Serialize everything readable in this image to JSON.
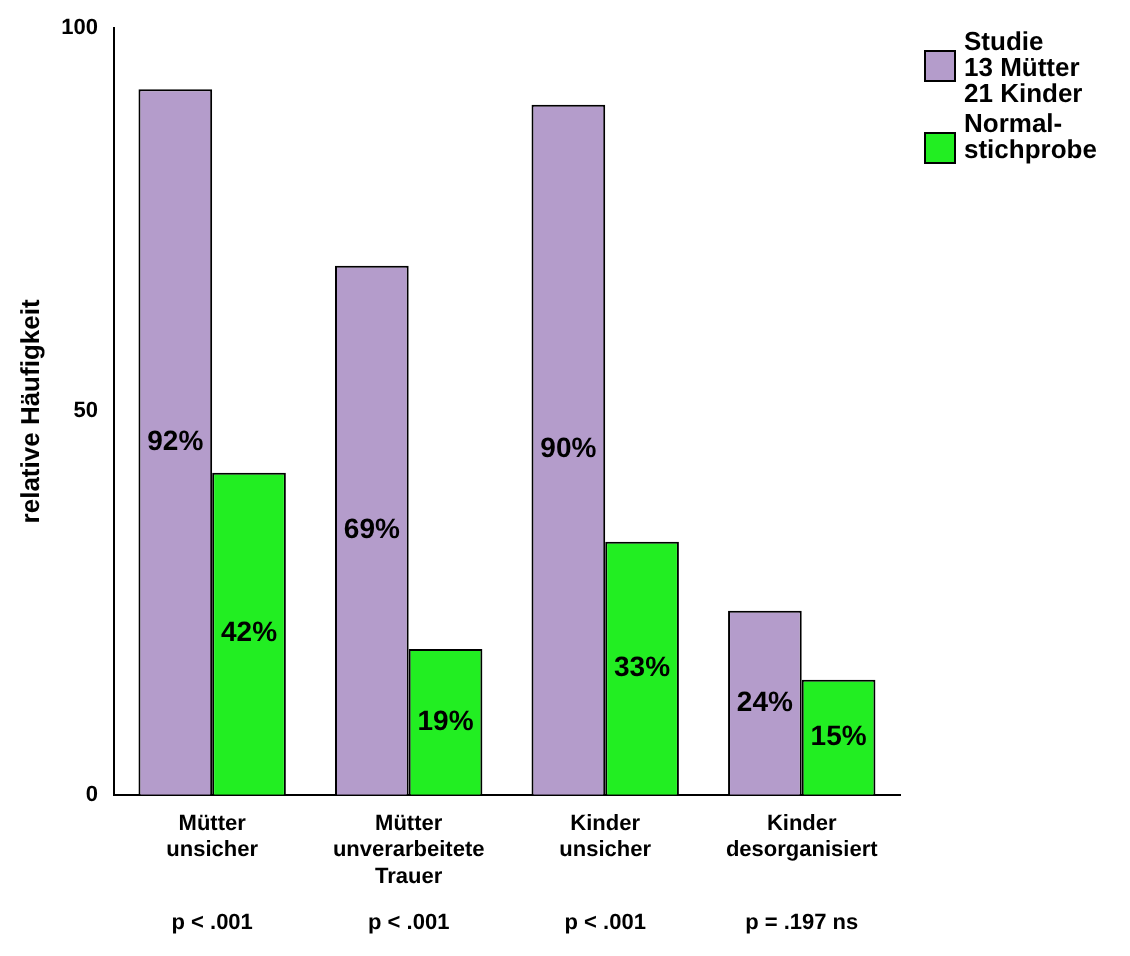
{
  "chart_data": {
    "type": "bar",
    "ylabel": "relative Häufigkeit",
    "categories": [
      "Mütter\nunsicher",
      "Mütter\nunverarbeitete\nTrauer",
      "Kinder\nunsicher",
      "Kinder\ndesorganisiert"
    ],
    "series": [
      {
        "name": "Studie\n13 Mütter\n21 Kinder",
        "color": "#b49ccb",
        "values": [
          92,
          69,
          90,
          24
        ],
        "value_labels": [
          "92%",
          "69%",
          "90%",
          "24%"
        ]
      },
      {
        "name": "Normal-\nstichprobe",
        "color": "#22ee22",
        "values": [
          42,
          19,
          33,
          15
        ],
        "value_labels": [
          "42%",
          "19%",
          "33%",
          "15%"
        ]
      }
    ],
    "ylim": [
      0,
      100
    ],
    "yticks": [
      0,
      50,
      100
    ],
    "grid": false,
    "legend": "top right",
    "annotations": [
      "p < .001",
      "p < .001",
      "p < .001",
      "p = .197 ns"
    ]
  }
}
